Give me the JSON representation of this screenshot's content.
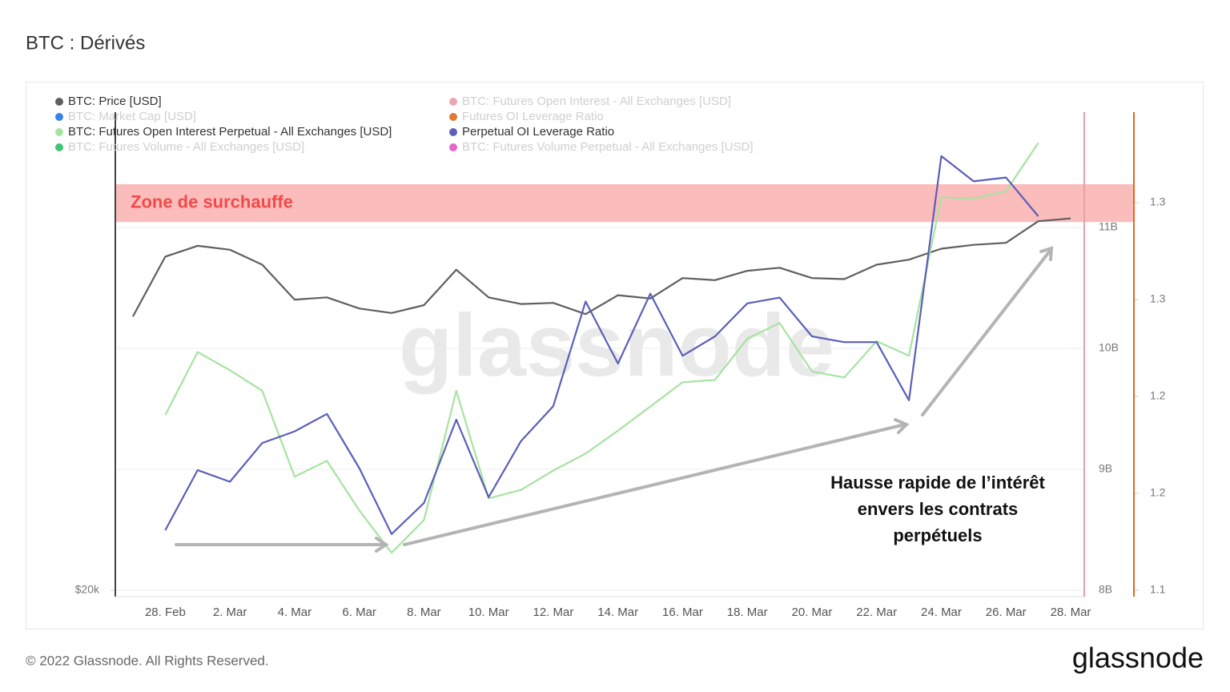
{
  "chart_data": {
    "type": "line",
    "title": "BTC : Dérivés",
    "watermark": "glassnode",
    "categories": [
      null,
      "28. Feb",
      null,
      "2. Mar",
      null,
      "4. Mar",
      null,
      "6. Mar",
      null,
      "8. Mar",
      null,
      "10. Mar",
      null,
      "12. Mar",
      null,
      "14. Mar",
      null,
      "16. Mar",
      null,
      "18. Mar",
      null,
      "20. Mar",
      null,
      "22. Mar",
      null,
      "24. Mar",
      null,
      "26. Mar",
      null,
      "28. Mar"
    ],
    "ylim": [
      20000,
      60500
    ],
    "ylog": true,
    "yticks": [
      {
        "value": 20000,
        "label": "$20k"
      }
    ],
    "y2lim": [
      8000000000,
      11954000000
    ],
    "y2ticks": [
      {
        "value": 8000000000,
        "label": "8B"
      },
      {
        "value": 9000000000,
        "label": "9B"
      },
      {
        "value": 10000000000,
        "label": "10B"
      },
      {
        "value": 11000000000,
        "label": "11B"
      }
    ],
    "y3lim": [
      1.1,
      1.3467
    ],
    "y3ticks": [
      {
        "value": 1.1,
        "label": "1.1"
      },
      {
        "value": 1.15,
        "label": "1.2"
      },
      {
        "value": 1.2,
        "label": "1.2"
      },
      {
        "value": 1.25,
        "label": "1.3"
      },
      {
        "value": 1.3,
        "label": "1.3"
      }
    ],
    "grid": true,
    "series": [
      {
        "name": "BTC: Price [USD]",
        "color": "#5f5f5f",
        "visible": true,
        "axis": "y",
        "values": [
          37700,
          43300,
          44400,
          44000,
          42500,
          39200,
          39400,
          38400,
          38000,
          38700,
          42000,
          39400,
          38800,
          38900,
          37900,
          39600,
          39300,
          41200,
          41000,
          41900,
          42200,
          41200,
          41100,
          42500,
          43000,
          44100,
          44500,
          44700,
          47000,
          47300
        ]
      },
      {
        "name": "BTC: Market Cap [USD]",
        "color": "#1f77e8",
        "visible": false
      },
      {
        "name": "BTC: Futures Open Interest Perpetual - All Exchanges [USD]",
        "color": "#a6e3a1",
        "visible": true,
        "axis": "y2",
        "values": [
          null,
          9450000000,
          9970000000,
          9820000000,
          9650000000,
          8940000000,
          9070000000,
          8660000000,
          8310000000,
          8580000000,
          9650000000,
          8760000000,
          8830000000,
          8990000000,
          9130000000,
          9320000000,
          9520000000,
          9720000000,
          9740000000,
          10080000000,
          10210000000,
          9810000000,
          9760000000,
          10060000000,
          9940000000,
          11250000000,
          11240000000,
          11300000000,
          11700000000,
          null
        ]
      },
      {
        "name": "BTC: Futures Volume - All Exchanges [USD]",
        "color": "#2bbf6a",
        "visible": false
      },
      {
        "name": "BTC: Futures Open Interest - All Exchanges [USD]",
        "color": "#e8a0a8",
        "visible": false
      },
      {
        "name": "Futures OI Leverage Ratio",
        "color": "#e06a1a",
        "visible": false
      },
      {
        "name": "Perpetual OI Leverage Ratio",
        "color": "#5b5fb8",
        "visible": true,
        "axis": "y3",
        "values": [
          null,
          1.131,
          1.162,
          1.156,
          1.176,
          1.182,
          1.191,
          1.163,
          1.129,
          1.145,
          1.188,
          1.148,
          1.177,
          1.195,
          1.249,
          1.217,
          1.253,
          1.221,
          1.231,
          1.248,
          1.251,
          1.231,
          1.228,
          1.228,
          1.198,
          1.324,
          1.311,
          1.313,
          1.293,
          null
        ]
      },
      {
        "name": "BTC: Futures Volume Perpetual - All Exchanges [USD]",
        "color": "#e055c8",
        "visible": false
      }
    ],
    "zone": {
      "label": "Zone de surchauffe",
      "axis": "y3",
      "range": [
        1.29,
        1.3095
      ],
      "color": "#fbbcbc"
    },
    "annotation": [
      "Hausse rapide de l’intérêt",
      "envers les contrats",
      "perpétuels"
    ]
  },
  "footer": {
    "copyright": "© 2022 Glassnode. All Rights Reserved.",
    "logo": "glassnode"
  }
}
